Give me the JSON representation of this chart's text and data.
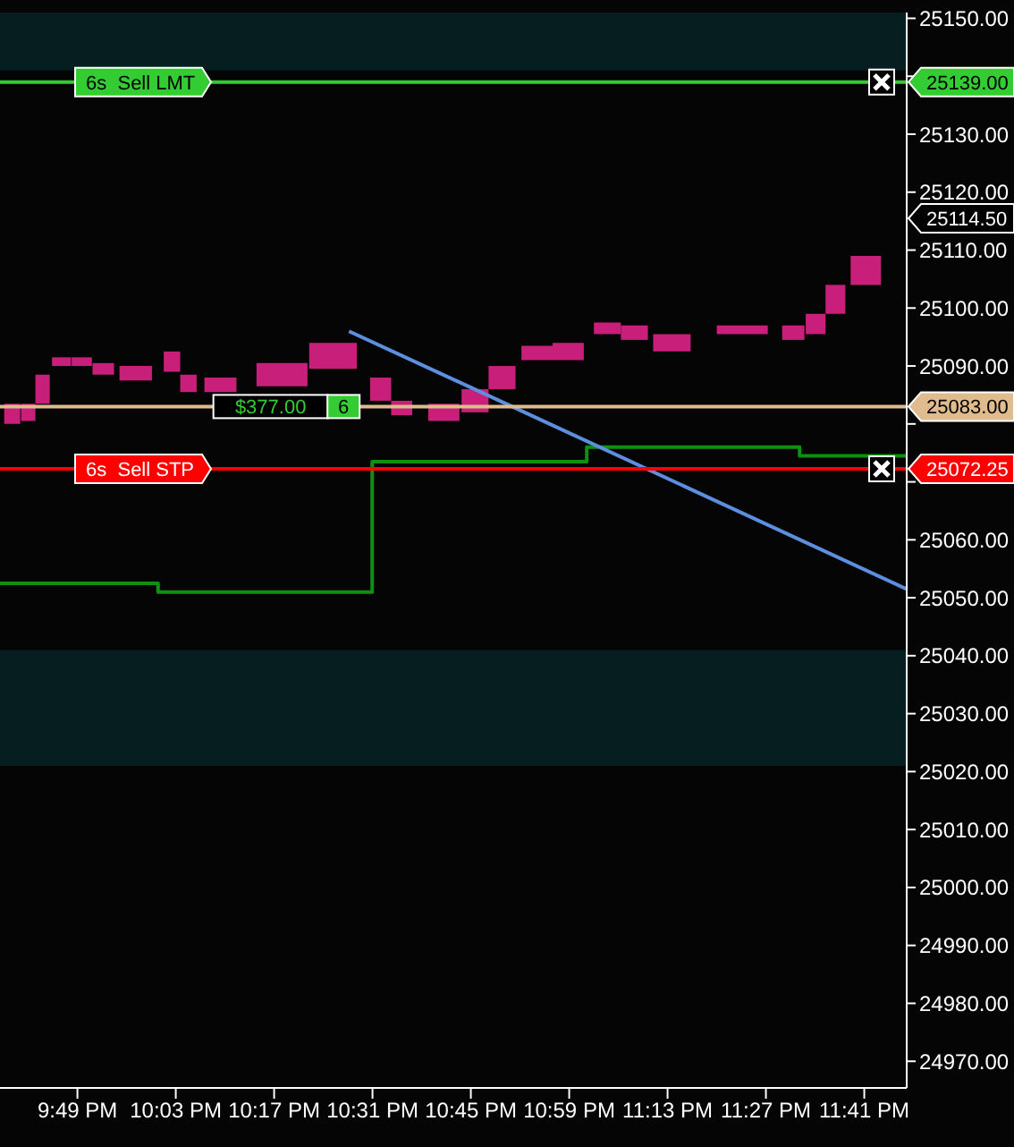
{
  "chart_data": {
    "type": "candlestick",
    "color": "#c8207a",
    "x": [
      21.662,
      21.7,
      21.734,
      21.779,
      21.827,
      21.878,
      21.955,
      22.041,
      22.08,
      22.156,
      22.302,
      22.423,
      22.536,
      22.586,
      22.686,
      22.76,
      22.824,
      22.907,
      22.981,
      23.074,
      23.138,
      23.227,
      23.394,
      23.515,
      23.568,
      23.615,
      23.687
    ],
    "ohlc": [
      [
        25083.5,
        25083.5,
        25080,
        25080
      ],
      [
        25083.5,
        25083.5,
        25080.5,
        25080.5
      ],
      [
        25088.5,
        25088.5,
        25083.5,
        25083.5
      ],
      [
        25091.5,
        25091.5,
        25090,
        25090
      ],
      [
        25091.5,
        25091.5,
        25090,
        25090
      ],
      [
        25090.5,
        25090.5,
        25088.5,
        25088.5
      ],
      [
        25090,
        25090,
        25087.5,
        25087.5
      ],
      [
        25092.5,
        25092.5,
        25089,
        25089
      ],
      [
        25088.5,
        25088.5,
        25085.5,
        25085.5
      ],
      [
        25088,
        25088,
        25085.5,
        25085.5
      ],
      [
        25090.5,
        25090.5,
        25086.5,
        25086.5
      ],
      [
        25094,
        25094,
        25089.5,
        25089.5
      ],
      [
        25088,
        25088,
        25084,
        25084
      ],
      [
        25084,
        25084,
        25081.5,
        25081.5
      ],
      [
        25083.5,
        25083.5,
        25080.5,
        25080.5
      ],
      [
        25086,
        25086,
        25082,
        25082
      ],
      [
        25090,
        25090,
        25086,
        25086
      ],
      [
        25093.5,
        25093.5,
        25091,
        25091
      ],
      [
        25094,
        25094,
        25091,
        25091
      ],
      [
        25097.5,
        25097.5,
        25095.5,
        25095.5
      ],
      [
        25097,
        25097,
        25094.5,
        25094.5
      ],
      [
        25095.5,
        25095.5,
        25092.5,
        25092.5
      ],
      [
        25097,
        25097,
        25095.5,
        25095.5
      ],
      [
        25097,
        25097,
        25094.5,
        25094.5
      ],
      [
        25099,
        25099,
        25095.5,
        25095.5
      ],
      [
        25104,
        25104,
        25099,
        25099
      ],
      [
        25109,
        25109,
        25104,
        25104
      ]
    ],
    "series": [
      {
        "type": "step",
        "color": "#109010",
        "x": [
          21.633,
          22.008,
          22.516,
          23.025,
          23.53,
          23.784
        ],
        "values": [
          25052.5,
          25051,
          25073.5,
          25076,
          25074.5,
          25074.5
        ]
      },
      {
        "type": "line",
        "color": "#5d8fe0",
        "x": [
          22.461,
          23.784
        ],
        "values": [
          25096,
          25051.5
        ]
      }
    ],
    "xlim": [
      21.633,
      23.784
    ],
    "xticks": [
      {
        "value": 21.81667,
        "label": "9:49 PM"
      },
      {
        "value": 22.05,
        "label": "10:03 PM"
      },
      {
        "value": 22.28333,
        "label": "10:17 PM"
      },
      {
        "value": 22.51667,
        "label": "10:31 PM"
      },
      {
        "value": 22.75,
        "label": "10:45 PM"
      },
      {
        "value": 22.98333,
        "label": "10:59 PM"
      },
      {
        "value": 23.21667,
        "label": "11:13 PM"
      },
      {
        "value": 23.45,
        "label": "11:27 PM"
      },
      {
        "value": 23.68333,
        "label": "11:41 PM"
      }
    ],
    "ylim": [
      24965.4,
      25151
    ],
    "yticks": [
      {
        "value": 24970,
        "label": "24970.00"
      },
      {
        "value": 24980,
        "label": "24980.00"
      },
      {
        "value": 24990,
        "label": "24990.00"
      },
      {
        "value": 25000,
        "label": "25000.00"
      },
      {
        "value": 25010,
        "label": "25010.00"
      },
      {
        "value": 25020,
        "label": "25020.00"
      },
      {
        "value": 25030,
        "label": "25030.00"
      },
      {
        "value": 25040,
        "label": "25040.00"
      },
      {
        "value": 25050,
        "label": "25050.00"
      },
      {
        "value": 25060,
        "label": "25060.00"
      },
      {
        "value": 25070,
        "label": null
      },
      {
        "value": 25080,
        "label": null
      },
      {
        "value": 25090,
        "label": "25090.00"
      },
      {
        "value": 25100,
        "label": "25100.00"
      },
      {
        "value": 25110,
        "label": "25110.00"
      },
      {
        "value": 25120,
        "label": "25120.00"
      },
      {
        "value": 25130,
        "label": "25130.00"
      },
      {
        "value": 25140,
        "label": null
      },
      {
        "value": 25150,
        "label": "25150.00"
      }
    ],
    "bands": [
      {
        "axis": "y",
        "from": 25141,
        "to": 25151,
        "color": "#061e20"
      },
      {
        "axis": "y",
        "from": 25021,
        "to": 25041,
        "color": "#061e20"
      }
    ],
    "ref_lines": [
      {
        "axis": "y",
        "value": 25139,
        "label": "6s  Sell LMT",
        "color": "#33cc33"
      },
      {
        "axis": "y",
        "value": 25072.25,
        "label": "6s  Sell STP",
        "color": "#ff0000"
      },
      {
        "axis": "y",
        "value": 25083,
        "color": "#e0bb8e"
      }
    ],
    "annotations": [
      {
        "text": "$377.00",
        "x": 22.275,
        "y": 25083
      },
      {
        "text": "6",
        "x": 22.448,
        "y": 25083
      },
      {
        "text": "25139.00",
        "x": 23.784,
        "y": 25139
      },
      {
        "text": "25083.00",
        "x": 23.784,
        "y": 25083
      },
      {
        "text": "25072.25",
        "x": 23.784,
        "y": 25072.25
      },
      "25114.50"
    ]
  }
}
